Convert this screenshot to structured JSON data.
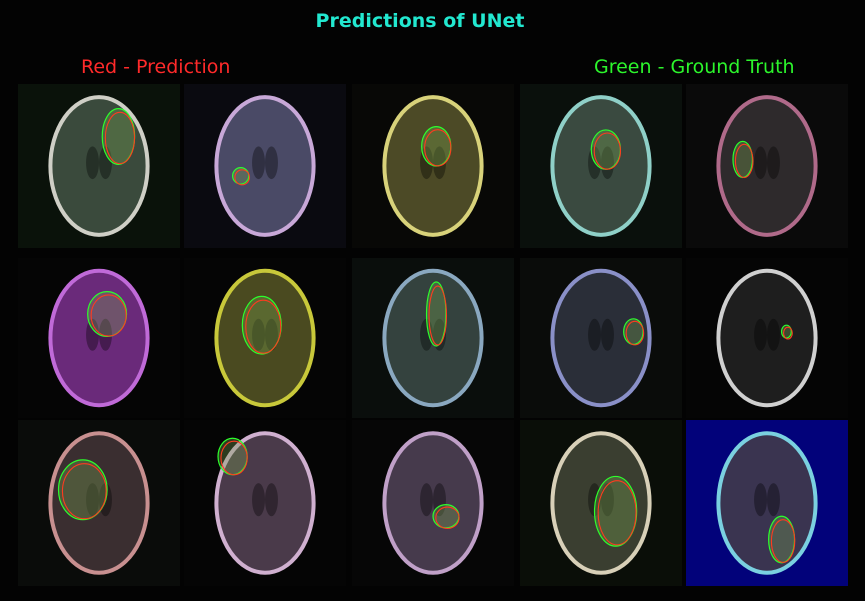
{
  "figure": {
    "title": "Predictions of UNet",
    "legend_prediction": "Red - Prediction",
    "legend_ground_truth": "Green - Ground Truth",
    "colors": {
      "title": "#22e8d0",
      "prediction": "#ff3b1f",
      "ground_truth": "#2cff2c",
      "background": "#030303"
    }
  },
  "tiles": [
    {
      "row": 0,
      "col": 0,
      "tint": "#3a4a3c",
      "rim": "#cfcfc6",
      "bg": "#0a120a"
    },
    {
      "row": 0,
      "col": 1,
      "tint": "#4a4a66",
      "rim": "#c8a8d8",
      "bg": "#0a0a10"
    },
    {
      "row": 0,
      "col": 2,
      "tint": "#4c4a26",
      "rim": "#d8d27a",
      "bg": "#080806"
    },
    {
      "row": 0,
      "col": 3,
      "tint": "#3a4a40",
      "rim": "#8fd0c8",
      "bg": "#0a100c"
    },
    {
      "row": 0,
      "col": 4,
      "tint": "#2e2a2c",
      "rim": "#b06a8a",
      "bg": "#0a0a0a"
    },
    {
      "row": 1,
      "col": 0,
      "tint": "#6a2a7a",
      "rim": "#c06ad8",
      "bg": "#050505"
    },
    {
      "row": 1,
      "col": 1,
      "tint": "#4a4a20",
      "rim": "#c8c83a",
      "bg": "#050505"
    },
    {
      "row": 1,
      "col": 2,
      "tint": "#34423e",
      "rim": "#8aa8c0",
      "bg": "#0a0e0c"
    },
    {
      "row": 1,
      "col": 3,
      "tint": "#2a2e38",
      "rim": "#8a90c8",
      "bg": "#0a0c0a"
    },
    {
      "row": 1,
      "col": 4,
      "tint": "#1e1e1e",
      "rim": "#d0d0d0",
      "bg": "#050505"
    },
    {
      "row": 2,
      "col": 0,
      "tint": "#3a2e30",
      "rim": "#c89090",
      "bg": "#0a0c0a"
    },
    {
      "row": 2,
      "col": 1,
      "tint": "#4a3a4a",
      "rim": "#d0b0d0",
      "bg": "#050505"
    },
    {
      "row": 2,
      "col": 2,
      "tint": "#463a4c",
      "rim": "#c0a0c8",
      "bg": "#060606"
    },
    {
      "row": 2,
      "col": 3,
      "tint": "#3a3e30",
      "rim": "#d8d0b8",
      "bg": "#0a0e08"
    },
    {
      "row": 2,
      "col": 4,
      "tint": "#3a3450",
      "rim": "#7ad0e0",
      "bg": "#02027a"
    }
  ]
}
